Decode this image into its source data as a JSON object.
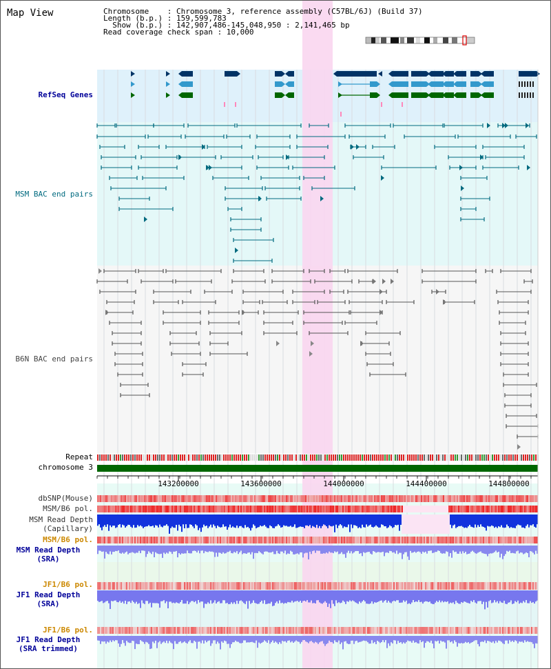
{
  "title": "Map View",
  "info": {
    "chromosome": "Chromosome    : Chromosome 3, reference assembly (C57BL/6J) (Build 37)",
    "length": "Length (b.p.) : 159,599,783",
    "show": "  Show (b.p.) : 142,907,486-145,048,950 : 2,141,465 bp",
    "span": "Read coverage check span : 10,000"
  },
  "tracks": {
    "refseq": "RefSeq Genes",
    "msm_bac": "MSM BAC end pairs",
    "b6n_bac": "B6N BAC end pairs",
    "repeat": "Repeat",
    "chromosome": "chromosome 3",
    "dbsnp": "dbSNP(Mouse)",
    "msm_b6_pol_1": "MSM/B6 pol.",
    "msm_depth_cap_1": "MSM Read Depth",
    "msm_depth_cap_2": "(Capillary)",
    "msm_b6_pol_2": "MSM/B6 pol.",
    "msm_depth_sra_1": "MSM Read Depth",
    "msm_depth_sra_2": "(SRA)",
    "jf1_b6_pol_1": "JF1/B6 pol.",
    "jf1_depth_sra_1": "JF1 Read Depth",
    "jf1_depth_sra_2": "(SRA)",
    "jf1_b6_pol_2": "JF1/B6 pol.",
    "jf1_depth_trim_1": "JF1 Read Depth",
    "jf1_depth_trim_2": "(SRA trimmed)"
  },
  "axis": {
    "ticks": [
      "143200000",
      "143600000",
      "144000000",
      "144400000",
      "144800000"
    ]
  },
  "colors": {
    "refseq_dark": "#003366",
    "refseq_light": "#3399cc",
    "refseq_green": "#006600",
    "msm_pair": "#006a7f",
    "b6n_pair": "#555555",
    "highlight": "#f9d6f0",
    "label_blue": "#000099",
    "label_teal": "#006a7f",
    "label_orange": "#cc8800"
  }
}
